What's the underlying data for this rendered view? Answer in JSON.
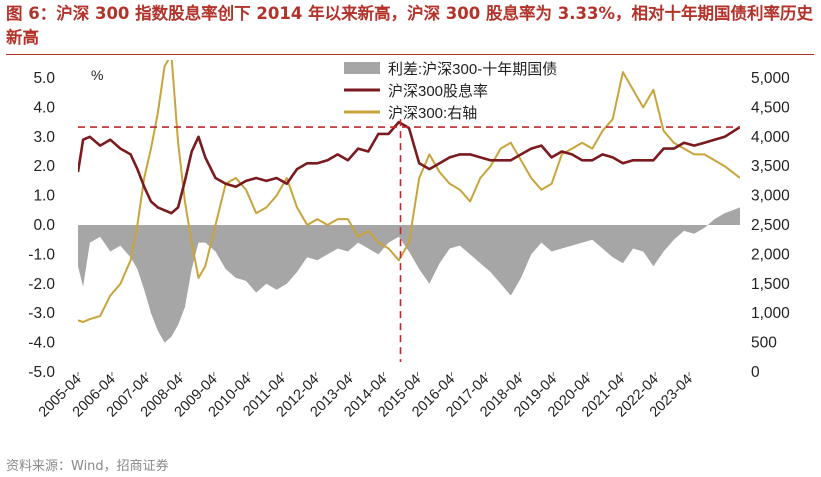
{
  "title": "图 6：沪深 300 指数股息率创下 2014 年以来新高，沪深 300 股息率为 3.33%，相对十年期国债利率历史新高",
  "source": "资料来源：Wind，招商证券",
  "colors": {
    "title": "#b3322a",
    "spread": "#a6a6a6",
    "dividend": "#7b1a1f",
    "index": "#c9a43c",
    "reference": "#c0282d"
  },
  "chart_data": {
    "type": "line",
    "y_left": {
      "unit_label": "%",
      "range": [
        -5.0,
        5.0
      ],
      "ticks": [
        "5.0",
        "4.0",
        "3.0",
        "2.0",
        "1.0",
        "0.0",
        "-1.0",
        "-2.0",
        "-3.0",
        "-4.0",
        "-5.0"
      ],
      "tick_values": [
        5,
        4,
        3,
        2,
        1,
        0,
        -1,
        -2,
        -3,
        -4,
        -5
      ]
    },
    "y_right": {
      "range": [
        0,
        5000
      ],
      "ticks": [
        "5,000",
        "4,500",
        "4,000",
        "3,500",
        "3,000",
        "2,500",
        "2,000",
        "1,500",
        "1,000",
        "500",
        "0"
      ],
      "tick_values": [
        5000,
        4500,
        4000,
        3500,
        3000,
        2500,
        2000,
        1500,
        1000,
        500,
        0
      ]
    },
    "x_axis": {
      "range": [
        2005.25,
        2024.75
      ],
      "tick_labels": [
        "2005-04",
        "2006-04",
        "2007-04",
        "2008-04",
        "2009-04",
        "2010-04",
        "2011-04",
        "2012-04",
        "2013-04",
        "2014-04",
        "2015-04",
        "2016-04",
        "2017-04",
        "2018-04",
        "2019-04",
        "2020-04",
        "2021-04",
        "2022-04",
        "2023-04"
      ],
      "tick_values": [
        2005.25,
        2006.25,
        2007.25,
        2008.25,
        2009.25,
        2010.25,
        2011.25,
        2012.25,
        2013.25,
        2014.25,
        2015.25,
        2016.25,
        2017.25,
        2018.25,
        2019.25,
        2020.25,
        2021.25,
        2022.25,
        2023.25
      ]
    },
    "legend_position": "top-center",
    "series": [
      {
        "name": "利差:沪深300-十年期国债",
        "type": "area",
        "axis": "left",
        "x": [
          2005.25,
          2005.4,
          2005.6,
          2005.9,
          2006.2,
          2006.5,
          2006.8,
          2007.0,
          2007.2,
          2007.4,
          2007.6,
          2007.8,
          2008.0,
          2008.2,
          2008.4,
          2008.6,
          2008.8,
          2009.0,
          2009.3,
          2009.6,
          2009.9,
          2010.2,
          2010.5,
          2010.8,
          2011.1,
          2011.4,
          2011.7,
          2012.0,
          2012.3,
          2012.6,
          2012.9,
          2013.2,
          2013.5,
          2013.8,
          2014.1,
          2014.4,
          2014.7,
          2015.0,
          2015.3,
          2015.6,
          2015.9,
          2016.2,
          2016.5,
          2016.8,
          2017.1,
          2017.4,
          2017.7,
          2018.0,
          2018.3,
          2018.6,
          2018.9,
          2019.2,
          2019.5,
          2019.8,
          2020.1,
          2020.4,
          2020.7,
          2021.0,
          2021.3,
          2021.6,
          2021.9,
          2022.2,
          2022.5,
          2022.8,
          2023.1,
          2023.4,
          2023.7,
          2024.0,
          2024.3,
          2024.75
        ],
        "values": [
          -1.4,
          -2.1,
          -0.6,
          -0.4,
          -0.9,
          -0.7,
          -1.1,
          -1.5,
          -2.2,
          -3.0,
          -3.6,
          -4.0,
          -3.8,
          -3.4,
          -2.8,
          -1.5,
          -0.6,
          -0.6,
          -0.9,
          -1.5,
          -1.8,
          -1.9,
          -2.3,
          -2.0,
          -2.2,
          -2.0,
          -1.6,
          -1.1,
          -1.2,
          -1.0,
          -0.8,
          -0.9,
          -0.6,
          -0.8,
          -1.0,
          -0.6,
          -0.4,
          -0.9,
          -1.5,
          -2.0,
          -1.3,
          -0.8,
          -0.7,
          -1.0,
          -1.3,
          -1.6,
          -2.0,
          -2.4,
          -1.8,
          -1.0,
          -0.6,
          -0.9,
          -0.8,
          -0.7,
          -0.6,
          -0.5,
          -0.8,
          -1.1,
          -1.3,
          -0.8,
          -0.9,
          -1.4,
          -0.9,
          -0.5,
          -0.2,
          -0.3,
          -0.1,
          0.2,
          0.4,
          0.6
        ]
      },
      {
        "name": "沪深300股息率",
        "type": "line",
        "axis": "left",
        "x": [
          2005.25,
          2005.4,
          2005.6,
          2005.9,
          2006.2,
          2006.5,
          2006.8,
          2007.0,
          2007.2,
          2007.4,
          2007.6,
          2007.8,
          2008.0,
          2008.2,
          2008.4,
          2008.6,
          2008.8,
          2009.0,
          2009.3,
          2009.6,
          2009.9,
          2010.2,
          2010.5,
          2010.8,
          2011.1,
          2011.4,
          2011.7,
          2012.0,
          2012.3,
          2012.6,
          2012.9,
          2013.2,
          2013.5,
          2013.8,
          2014.1,
          2014.4,
          2014.7,
          2015.0,
          2015.3,
          2015.6,
          2015.9,
          2016.2,
          2016.5,
          2016.8,
          2017.1,
          2017.4,
          2017.7,
          2018.0,
          2018.3,
          2018.6,
          2018.9,
          2019.2,
          2019.5,
          2019.8,
          2020.1,
          2020.4,
          2020.7,
          2021.0,
          2021.3,
          2021.6,
          2021.9,
          2022.2,
          2022.5,
          2022.8,
          2023.1,
          2023.4,
          2023.7,
          2024.0,
          2024.3,
          2024.75
        ],
        "values": [
          1.8,
          2.9,
          3.0,
          2.7,
          2.9,
          2.6,
          2.4,
          1.9,
          1.3,
          0.8,
          0.6,
          0.5,
          0.4,
          0.6,
          1.5,
          2.5,
          3.0,
          2.3,
          1.6,
          1.4,
          1.3,
          1.5,
          1.6,
          1.5,
          1.6,
          1.4,
          1.9,
          2.1,
          2.1,
          2.2,
          2.4,
          2.2,
          2.6,
          2.5,
          3.1,
          3.1,
          3.5,
          3.3,
          2.1,
          1.9,
          2.1,
          2.3,
          2.4,
          2.4,
          2.3,
          2.2,
          2.2,
          2.2,
          2.4,
          2.6,
          2.7,
          2.3,
          2.5,
          2.4,
          2.2,
          2.2,
          2.4,
          2.3,
          2.1,
          2.2,
          2.2,
          2.2,
          2.6,
          2.6,
          2.8,
          2.7,
          2.8,
          2.9,
          3.0,
          3.33
        ]
      },
      {
        "name": "沪深300:右轴",
        "type": "line",
        "axis": "right",
        "x": [
          2005.25,
          2005.4,
          2005.6,
          2005.9,
          2006.2,
          2006.5,
          2006.8,
          2007.0,
          2007.2,
          2007.4,
          2007.6,
          2007.8,
          2008.0,
          2008.2,
          2008.4,
          2008.6,
          2008.8,
          2009.0,
          2009.3,
          2009.6,
          2009.9,
          2010.2,
          2010.5,
          2010.8,
          2011.1,
          2011.4,
          2011.7,
          2012.0,
          2012.3,
          2012.6,
          2012.9,
          2013.2,
          2013.5,
          2013.8,
          2014.1,
          2014.4,
          2014.7,
          2015.0,
          2015.3,
          2015.6,
          2015.9,
          2016.2,
          2016.5,
          2016.8,
          2017.1,
          2017.4,
          2017.7,
          2018.0,
          2018.3,
          2018.6,
          2018.9,
          2019.2,
          2019.5,
          2019.8,
          2020.1,
          2020.4,
          2020.7,
          2021.0,
          2021.3,
          2021.6,
          2021.9,
          2022.2,
          2022.5,
          2022.8,
          2023.1,
          2023.4,
          2023.7,
          2024.0,
          2024.3,
          2024.75
        ],
        "values": [
          880,
          850,
          900,
          950,
          1300,
          1500,
          1900,
          2500,
          3300,
          3800,
          4400,
          5200,
          5400,
          3900,
          2900,
          2200,
          1600,
          1800,
          2500,
          3200,
          3300,
          3100,
          2700,
          2800,
          3000,
          3300,
          2800,
          2500,
          2600,
          2500,
          2600,
          2600,
          2300,
          2400,
          2200,
          2100,
          1900,
          2200,
          3300,
          3700,
          3400,
          3200,
          3100,
          2900,
          3300,
          3500,
          3800,
          3900,
          3600,
          3300,
          3100,
          3200,
          3700,
          3800,
          3900,
          3800,
          4100,
          4300,
          5100,
          4800,
          4500,
          4800,
          4100,
          3900,
          3800,
          3700,
          3700,
          3600,
          3500,
          3300
        ]
      }
    ],
    "reference_lines": [
      {
        "orientation": "horizontal",
        "axis": "left",
        "value": 3.33
      },
      {
        "orientation": "vertical",
        "x": 2014.75
      }
    ]
  }
}
